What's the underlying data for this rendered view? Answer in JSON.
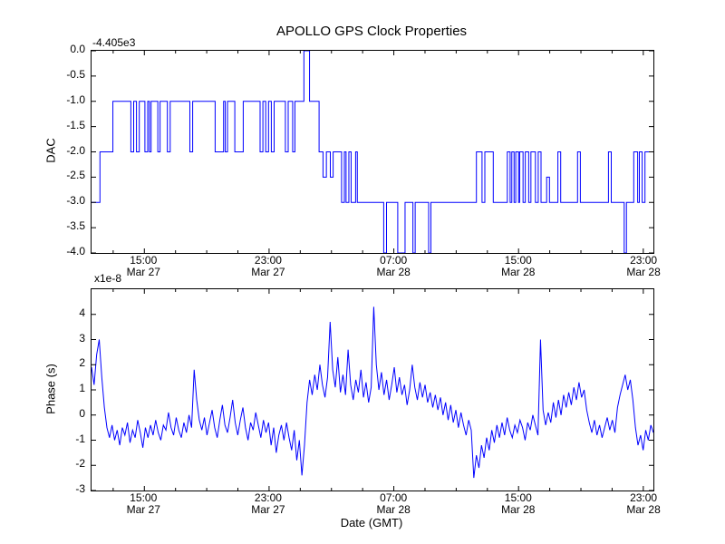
{
  "figure": {
    "title": "APOLLO GPS Clock Properties",
    "xlabel": "Date (GMT)",
    "background": "#ffffff",
    "line_color": "#0000ff",
    "axes_color": "#000000"
  },
  "chart_data": [
    {
      "type": "line",
      "subtype": "step",
      "name": "dac-vs-time",
      "ylabel": "DAC",
      "offset_text": "-4.405e3",
      "ylim": [
        -4.0,
        0.0
      ],
      "yticks": [
        0.0,
        -0.5,
        -1.0,
        -1.5,
        -2.0,
        -2.5,
        -3.0,
        -3.5,
        -4.0
      ],
      "ytick_labels": [
        "0.0",
        "-0.5",
        "-1.0",
        "-1.5",
        "-2.0",
        "-2.5",
        "-3.0",
        "-3.5",
        "-4.0"
      ],
      "xticks": [
        {
          "f": 0.094,
          "time": "15:00",
          "date": "Mar 27"
        },
        {
          "f": 0.316,
          "time": "23:00",
          "date": "Mar 27"
        },
        {
          "f": 0.539,
          "time": "07:00",
          "date": "Mar 28"
        },
        {
          "f": 0.761,
          "time": "15:00",
          "date": "Mar 28"
        },
        {
          "f": 0.984,
          "time": "23:00",
          "date": "Mar 28"
        }
      ],
      "steps": [
        [
          0.0,
          -3.0
        ],
        [
          0.015,
          -2.0
        ],
        [
          0.038,
          -1.0
        ],
        [
          0.07,
          -2.0
        ],
        [
          0.075,
          -1.0
        ],
        [
          0.08,
          -2.0
        ],
        [
          0.085,
          -1.0
        ],
        [
          0.095,
          -2.0
        ],
        [
          0.1,
          -1.0
        ],
        [
          0.103,
          -2.0
        ],
        [
          0.106,
          -1.0
        ],
        [
          0.118,
          -2.0
        ],
        [
          0.122,
          -1.0
        ],
        [
          0.135,
          -2.0
        ],
        [
          0.14,
          -1.0
        ],
        [
          0.175,
          -2.0
        ],
        [
          0.18,
          -1.0
        ],
        [
          0.22,
          -2.0
        ],
        [
          0.235,
          -1.0
        ],
        [
          0.238,
          -2.0
        ],
        [
          0.242,
          -1.0
        ],
        [
          0.255,
          -2.0
        ],
        [
          0.27,
          -1.0
        ],
        [
          0.3,
          -2.0
        ],
        [
          0.305,
          -1.0
        ],
        [
          0.31,
          -2.0
        ],
        [
          0.315,
          -1.0
        ],
        [
          0.32,
          -2.0
        ],
        [
          0.325,
          -1.0
        ],
        [
          0.345,
          -2.0
        ],
        [
          0.35,
          -1.0
        ],
        [
          0.358,
          -2.0
        ],
        [
          0.362,
          -1.0
        ],
        [
          0.378,
          0.0
        ],
        [
          0.388,
          -1.0
        ],
        [
          0.405,
          -2.0
        ],
        [
          0.412,
          -2.5
        ],
        [
          0.418,
          -2.0
        ],
        [
          0.425,
          -2.5
        ],
        [
          0.43,
          -2.0
        ],
        [
          0.445,
          -3.0
        ],
        [
          0.45,
          -2.0
        ],
        [
          0.453,
          -3.0
        ],
        [
          0.458,
          -2.0
        ],
        [
          0.462,
          -3.0
        ],
        [
          0.47,
          -2.0
        ],
        [
          0.473,
          -3.0
        ],
        [
          0.52,
          -4.0
        ],
        [
          0.525,
          -3.0
        ],
        [
          0.545,
          -4.0
        ],
        [
          0.558,
          -3.0
        ],
        [
          0.572,
          -4.0
        ],
        [
          0.576,
          -3.0
        ],
        [
          0.6,
          -4.0
        ],
        [
          0.604,
          -3.0
        ],
        [
          0.685,
          -2.0
        ],
        [
          0.695,
          -3.0
        ],
        [
          0.7,
          -2.0
        ],
        [
          0.715,
          -3.0
        ],
        [
          0.74,
          -2.0
        ],
        [
          0.745,
          -3.0
        ],
        [
          0.748,
          -2.0
        ],
        [
          0.752,
          -3.0
        ],
        [
          0.755,
          -2.0
        ],
        [
          0.76,
          -3.0
        ],
        [
          0.762,
          -2.0
        ],
        [
          0.768,
          -3.0
        ],
        [
          0.772,
          -2.0
        ],
        [
          0.778,
          -3.0
        ],
        [
          0.782,
          -2.0
        ],
        [
          0.79,
          -3.0
        ],
        [
          0.795,
          -2.0
        ],
        [
          0.8,
          -3.0
        ],
        [
          0.81,
          -2.5
        ],
        [
          0.815,
          -3.0
        ],
        [
          0.83,
          -2.0
        ],
        [
          0.835,
          -3.0
        ],
        [
          0.865,
          -2.0
        ],
        [
          0.87,
          -3.0
        ],
        [
          0.92,
          -2.0
        ],
        [
          0.925,
          -3.0
        ],
        [
          0.948,
          -4.0
        ],
        [
          0.952,
          -3.0
        ],
        [
          0.965,
          -2.0
        ],
        [
          0.972,
          -3.0
        ],
        [
          0.975,
          -2.0
        ],
        [
          0.98,
          -3.0
        ],
        [
          0.985,
          -2.0
        ]
      ]
    },
    {
      "type": "line",
      "subtype": "noisy",
      "name": "phase-vs-time",
      "ylabel": "Phase (s)",
      "offset_text": "x1e-8",
      "ylim": [
        -3,
        5
      ],
      "yticks": [
        4,
        3,
        2,
        1,
        0,
        -1,
        -2,
        -3
      ],
      "ytick_labels": [
        "4",
        "3",
        "2",
        "1",
        "0",
        "-1",
        "-2",
        "-3"
      ],
      "xticks": [
        {
          "f": 0.094,
          "time": "15:00",
          "date": "Mar 27"
        },
        {
          "f": 0.316,
          "time": "23:00",
          "date": "Mar 27"
        },
        {
          "f": 0.539,
          "time": "07:00",
          "date": "Mar 28"
        },
        {
          "f": 0.761,
          "time": "15:00",
          "date": "Mar 28"
        },
        {
          "f": 0.984,
          "time": "23:00",
          "date": "Mar 28"
        }
      ],
      "x_range_fraction": [
        0,
        1
      ],
      "values": [
        1.9,
        1.2,
        2.4,
        3.0,
        1.5,
        0.3,
        -0.5,
        -0.9,
        -0.4,
        -1.0,
        -0.6,
        -1.2,
        -0.5,
        -0.8,
        -0.3,
        -1.1,
        -0.6,
        -0.9,
        -0.2,
        -0.7,
        -1.3,
        -0.5,
        -0.9,
        -0.4,
        -0.8,
        -0.2,
        -0.7,
        -1.0,
        -0.4,
        -0.6,
        0.1,
        -0.5,
        -0.8,
        -0.1,
        -0.6,
        -0.9,
        -0.3,
        -0.7,
        0.0,
        -0.5,
        1.8,
        0.6,
        -0.2,
        -0.6,
        -0.1,
        -0.8,
        -0.3,
        0.2,
        -0.5,
        -0.9,
        -0.2,
        0.4,
        -0.4,
        -0.7,
        -0.1,
        0.6,
        -0.3,
        -0.8,
        -0.2,
        0.3,
        -0.5,
        -1.0,
        -0.3,
        -0.6,
        0.1,
        -0.4,
        -0.9,
        -0.2,
        -0.7,
        -0.3,
        -1.2,
        -0.5,
        -1.5,
        -0.8,
        -0.4,
        -1.0,
        -0.3,
        -0.9,
        -1.4,
        -0.6,
        -1.8,
        -1.0,
        -2.4,
        -1.2,
        0.5,
        1.4,
        0.8,
        1.6,
        1.0,
        2.0,
        1.2,
        0.7,
        1.5,
        3.7,
        1.8,
        1.1,
        2.3,
        0.9,
        1.6,
        0.8,
        2.6,
        1.2,
        0.6,
        1.4,
        0.9,
        1.8,
        0.7,
        1.3,
        0.5,
        1.1,
        4.3,
        2.0,
        1.0,
        1.7,
        0.8,
        1.4,
        0.6,
        1.2,
        1.9,
        0.9,
        1.5,
        0.8,
        1.2,
        0.4,
        1.0,
        2.0,
        1.1,
        0.6,
        1.3,
        0.7,
        1.2,
        0.5,
        0.9,
        0.3,
        0.8,
        0.2,
        0.7,
        0.0,
        0.5,
        -0.2,
        0.4,
        -0.3,
        0.2,
        -0.5,
        0.1,
        -0.4,
        -0.8,
        -0.2,
        -0.6,
        -2.5,
        -1.6,
        -2.1,
        -1.2,
        -1.7,
        -0.9,
        -1.4,
        -0.6,
        -1.1,
        -0.4,
        -0.9,
        -0.3,
        -0.8,
        -0.1,
        -0.6,
        -0.9,
        -0.4,
        -0.7,
        -0.2,
        -0.5,
        -1.0,
        -0.3,
        -0.6,
        0.0,
        -0.4,
        -0.8,
        3.0,
        0.2,
        -0.4,
        0.1,
        -0.3,
        0.5,
        -0.1,
        0.6,
        0.0,
        0.8,
        0.3,
        0.9,
        0.4,
        1.1,
        0.6,
        1.3,
        0.7,
        1.0,
        0.2,
        -0.3,
        -0.7,
        -0.2,
        -0.8,
        -0.4,
        -0.9,
        -0.5,
        -0.1,
        -0.6,
        -0.2,
        -0.7,
        0.3,
        0.8,
        1.2,
        1.6,
        1.0,
        1.4,
        0.6,
        -0.5,
        -1.2,
        -0.8,
        -1.4,
        -0.6,
        -1.0,
        -0.4,
        -0.7
      ]
    }
  ]
}
